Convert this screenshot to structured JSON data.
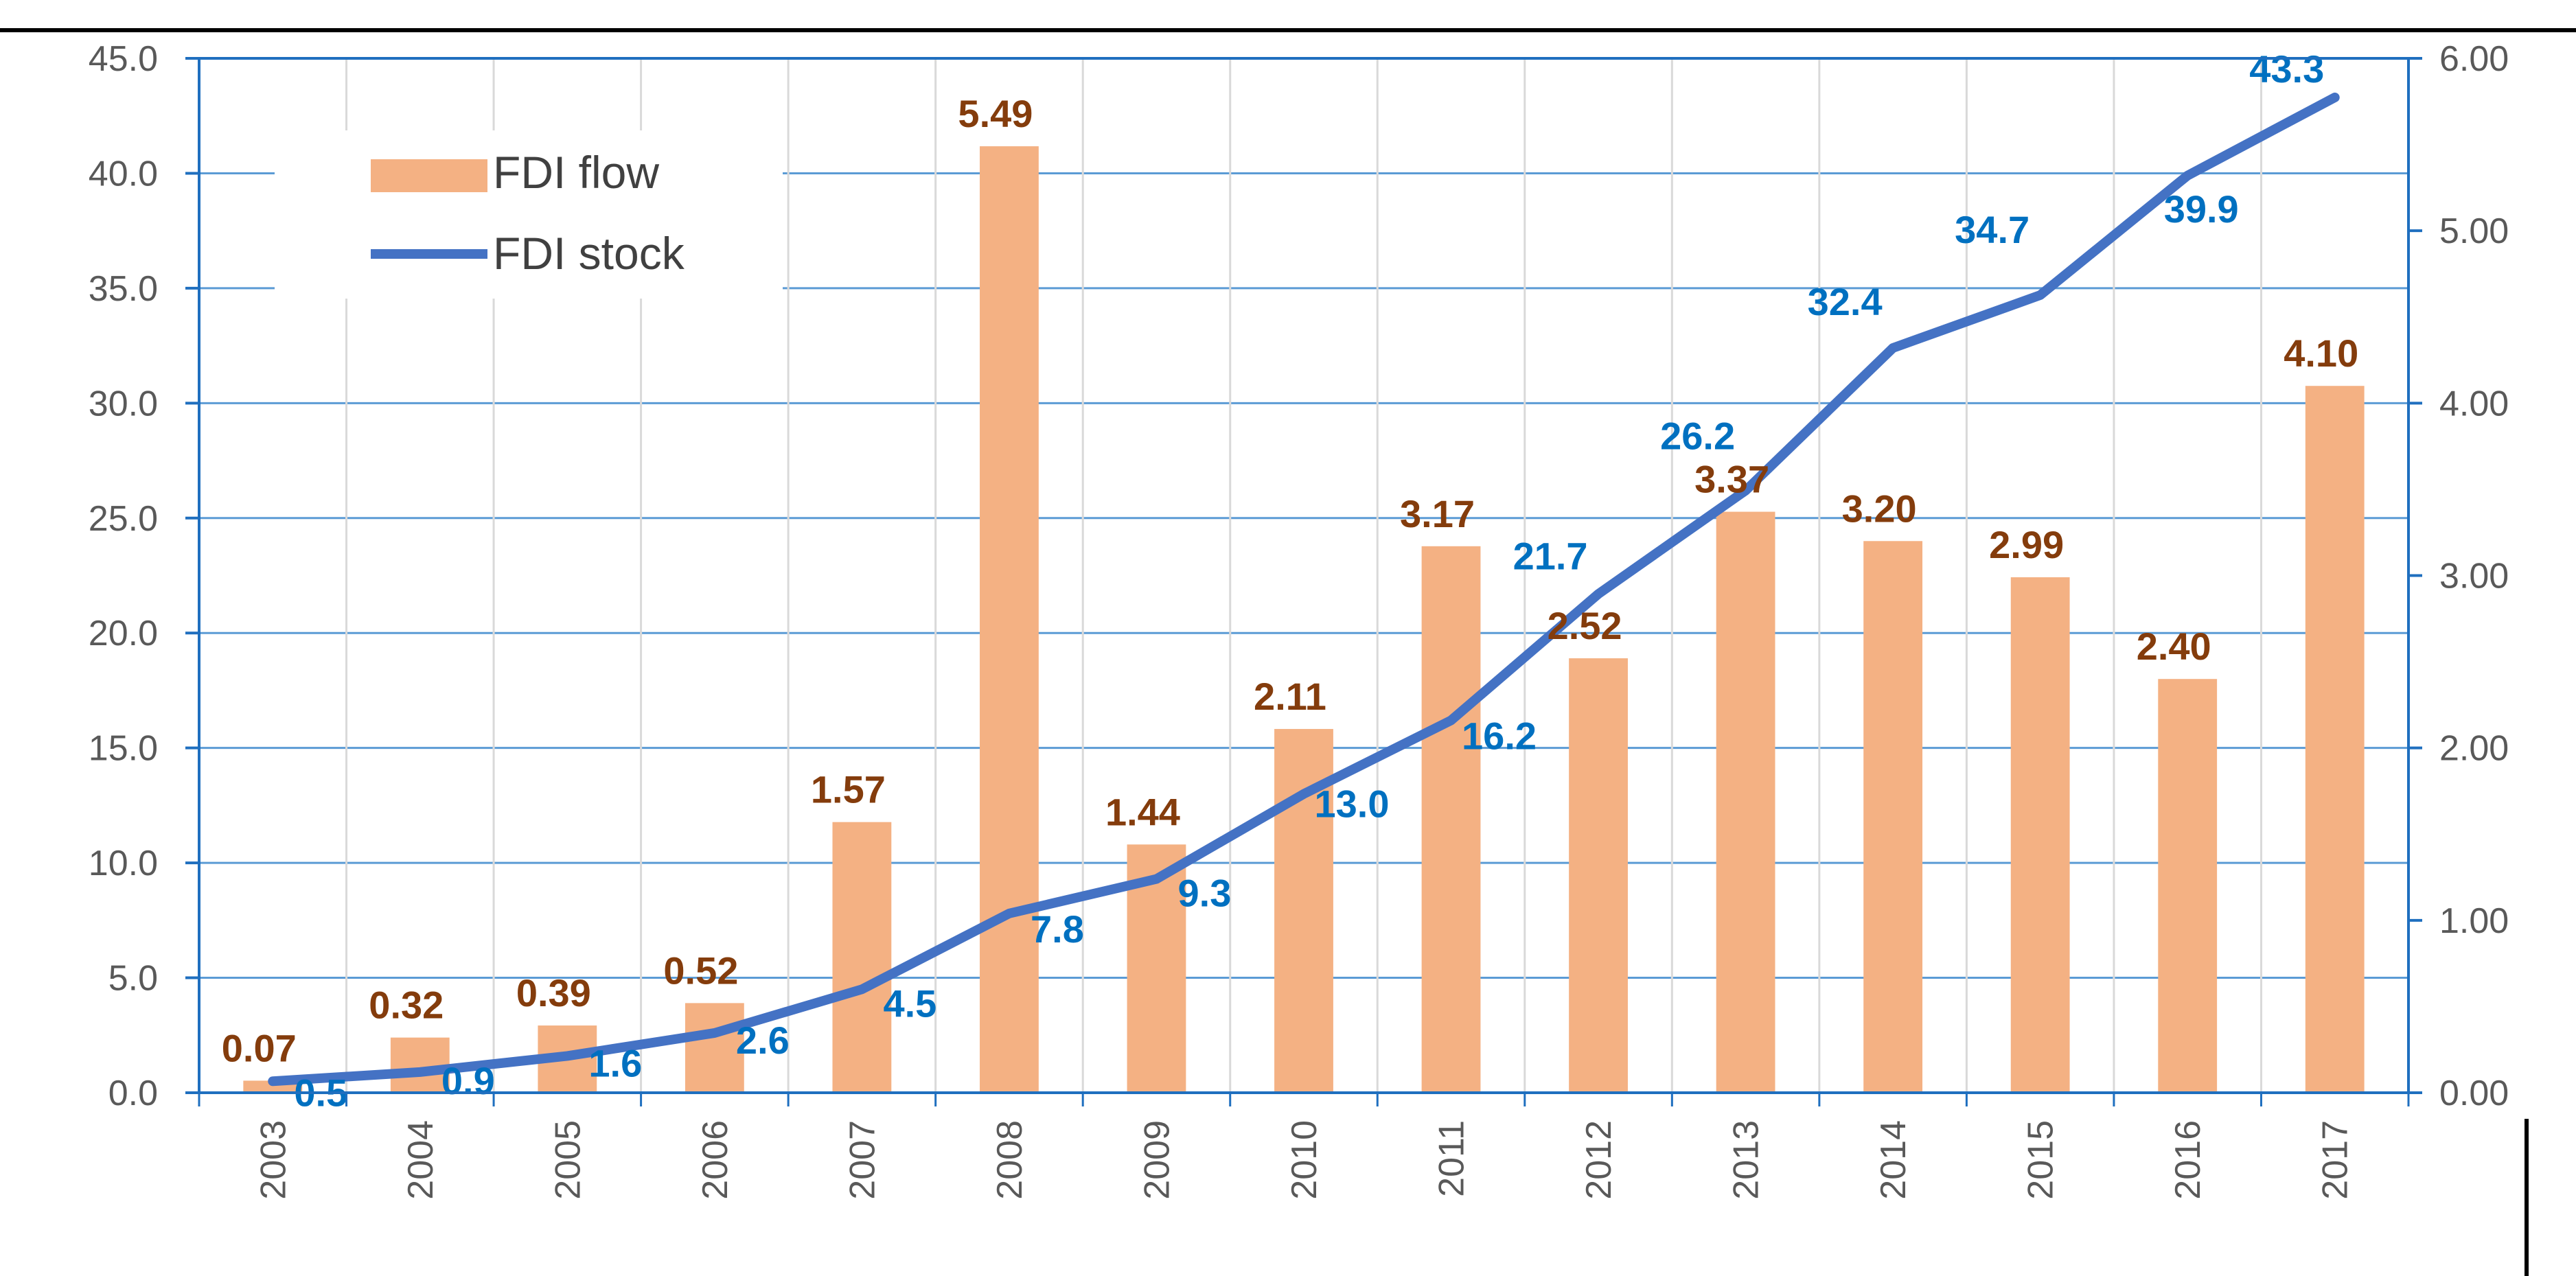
{
  "chart_data": {
    "type": "bar",
    "categories": [
      "2003",
      "2004",
      "2005",
      "2006",
      "2007",
      "2008",
      "2009",
      "2010",
      "2011",
      "2012",
      "2013",
      "2014",
      "2015",
      "2016",
      "2017"
    ],
    "series": [
      {
        "name": "FDI flow",
        "kind": "bar",
        "axis": "right",
        "values": [
          0.07,
          0.32,
          0.39,
          0.52,
          1.57,
          5.49,
          1.44,
          2.11,
          3.17,
          2.52,
          3.37,
          3.2,
          2.99,
          2.4,
          4.1
        ],
        "labels": [
          "0.07",
          "0.32",
          "0.39",
          "0.52",
          "1.57",
          "5.49",
          "1.44",
          "2.11",
          "3.17",
          "2.52",
          "3.37",
          "3.20",
          "2.99",
          "2.40",
          "4.10"
        ],
        "color": "#f4b183",
        "label_color": "#843c0c"
      },
      {
        "name": "FDI stock",
        "kind": "line",
        "axis": "left",
        "values": [
          0.5,
          0.9,
          1.6,
          2.6,
          4.5,
          7.8,
          9.3,
          13.0,
          16.2,
          21.7,
          26.2,
          32.4,
          34.7,
          39.9,
          43.3
        ],
        "labels": [
          "0.5",
          "0.9",
          "1.6",
          "2.6",
          "4.5",
          "7.8",
          "9.3",
          "13.0",
          "16.2",
          "21.7",
          "26.2",
          "32.4",
          "34.7",
          "39.9",
          "43.3"
        ],
        "color": "#4472c4",
        "label_color": "#0070c0"
      }
    ],
    "y_left": {
      "min": 0,
      "max": 45,
      "ticks": [
        "0.0",
        "5.0",
        "10.0",
        "15.0",
        "20.0",
        "25.0",
        "30.0",
        "35.0",
        "40.0",
        "45.0"
      ]
    },
    "y_right": {
      "min": 0,
      "max": 6,
      "ticks": [
        "0.00",
        "1.00",
        "2.00",
        "3.00",
        "4.00",
        "5.00",
        "6.00"
      ]
    },
    "legend": {
      "position": "top-left",
      "entries": [
        "FDI flow",
        "FDI stock"
      ]
    },
    "grid": true,
    "plot_border_color": "#1f6fbf",
    "grid_color": "#5b9bd5"
  }
}
